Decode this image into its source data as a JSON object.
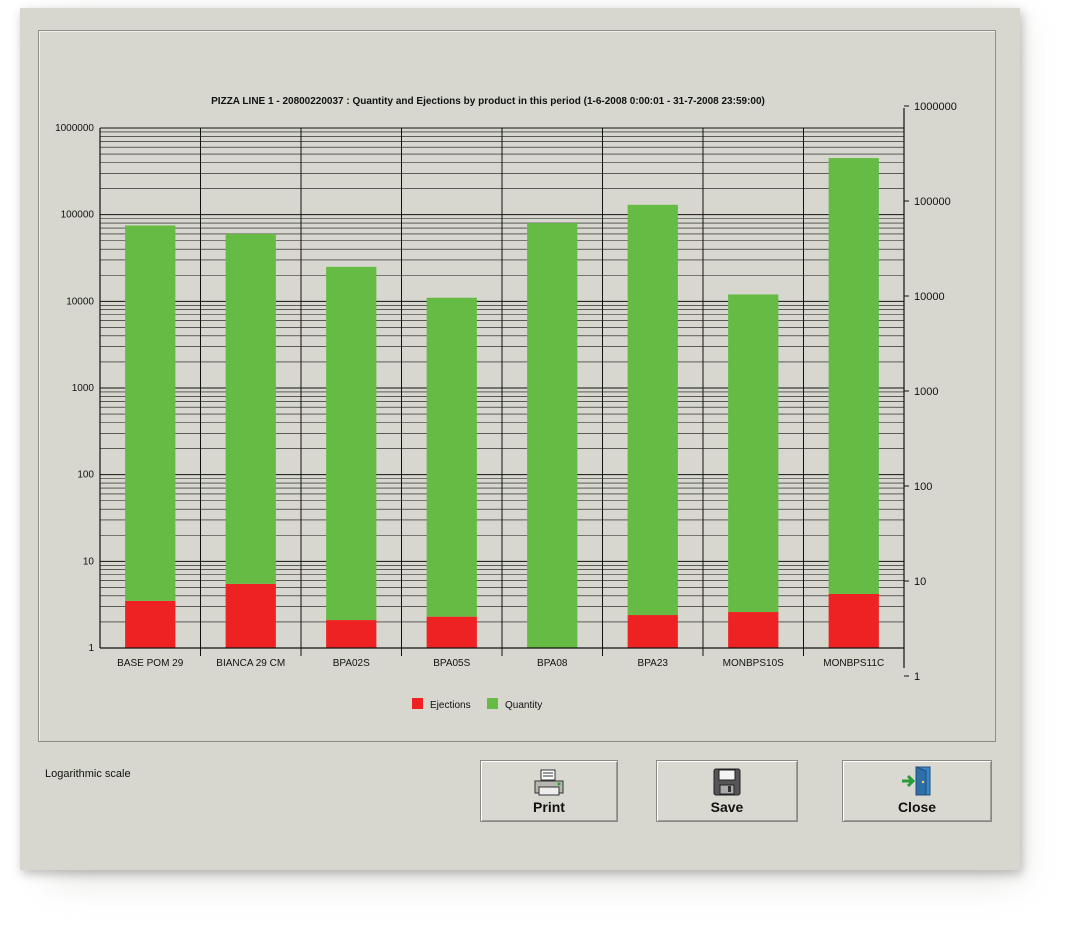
{
  "window": {
    "scale_label": "Logarithmic scale",
    "buttons": {
      "print": "Print",
      "save": "Save",
      "close": "Close"
    }
  },
  "chart_data": {
    "type": "bar",
    "stacked": true,
    "title": "PIZZA LINE 1 - 20800220037 : Quantity and Ejections by product in this period (1-6-2008 0:00:01 - 31-7-2008 23:59:00)",
    "xlabel": "",
    "ylabel": "",
    "log_scale": true,
    "ylim": [
      1,
      1000000
    ],
    "y_ticks": [
      "1",
      "10",
      "100",
      "1000",
      "10000",
      "100000",
      "1000000"
    ],
    "y2_ticks": [
      "1",
      "10",
      "100",
      "1000",
      "10000",
      "100000",
      "1000000"
    ],
    "grid": true,
    "legend_position": "bottom-center",
    "categories": [
      "BASE POM 29",
      "BIANCA 29 CM",
      "BPA02S",
      "BPA05S",
      "BPA08",
      "BPA23",
      "MONBPS10S",
      "MONBPS11C"
    ],
    "series": [
      {
        "name": "Ejections",
        "color": "#ee2222",
        "values": [
          2.5,
          4.5,
          1.1,
          1.3,
          0,
          1.4,
          1.6,
          3.2
        ]
      },
      {
        "name": "Quantity",
        "color": "#66bb44",
        "values": [
          75000,
          60000,
          25000,
          11000,
          80000,
          130000,
          12000,
          450000
        ]
      }
    ]
  }
}
